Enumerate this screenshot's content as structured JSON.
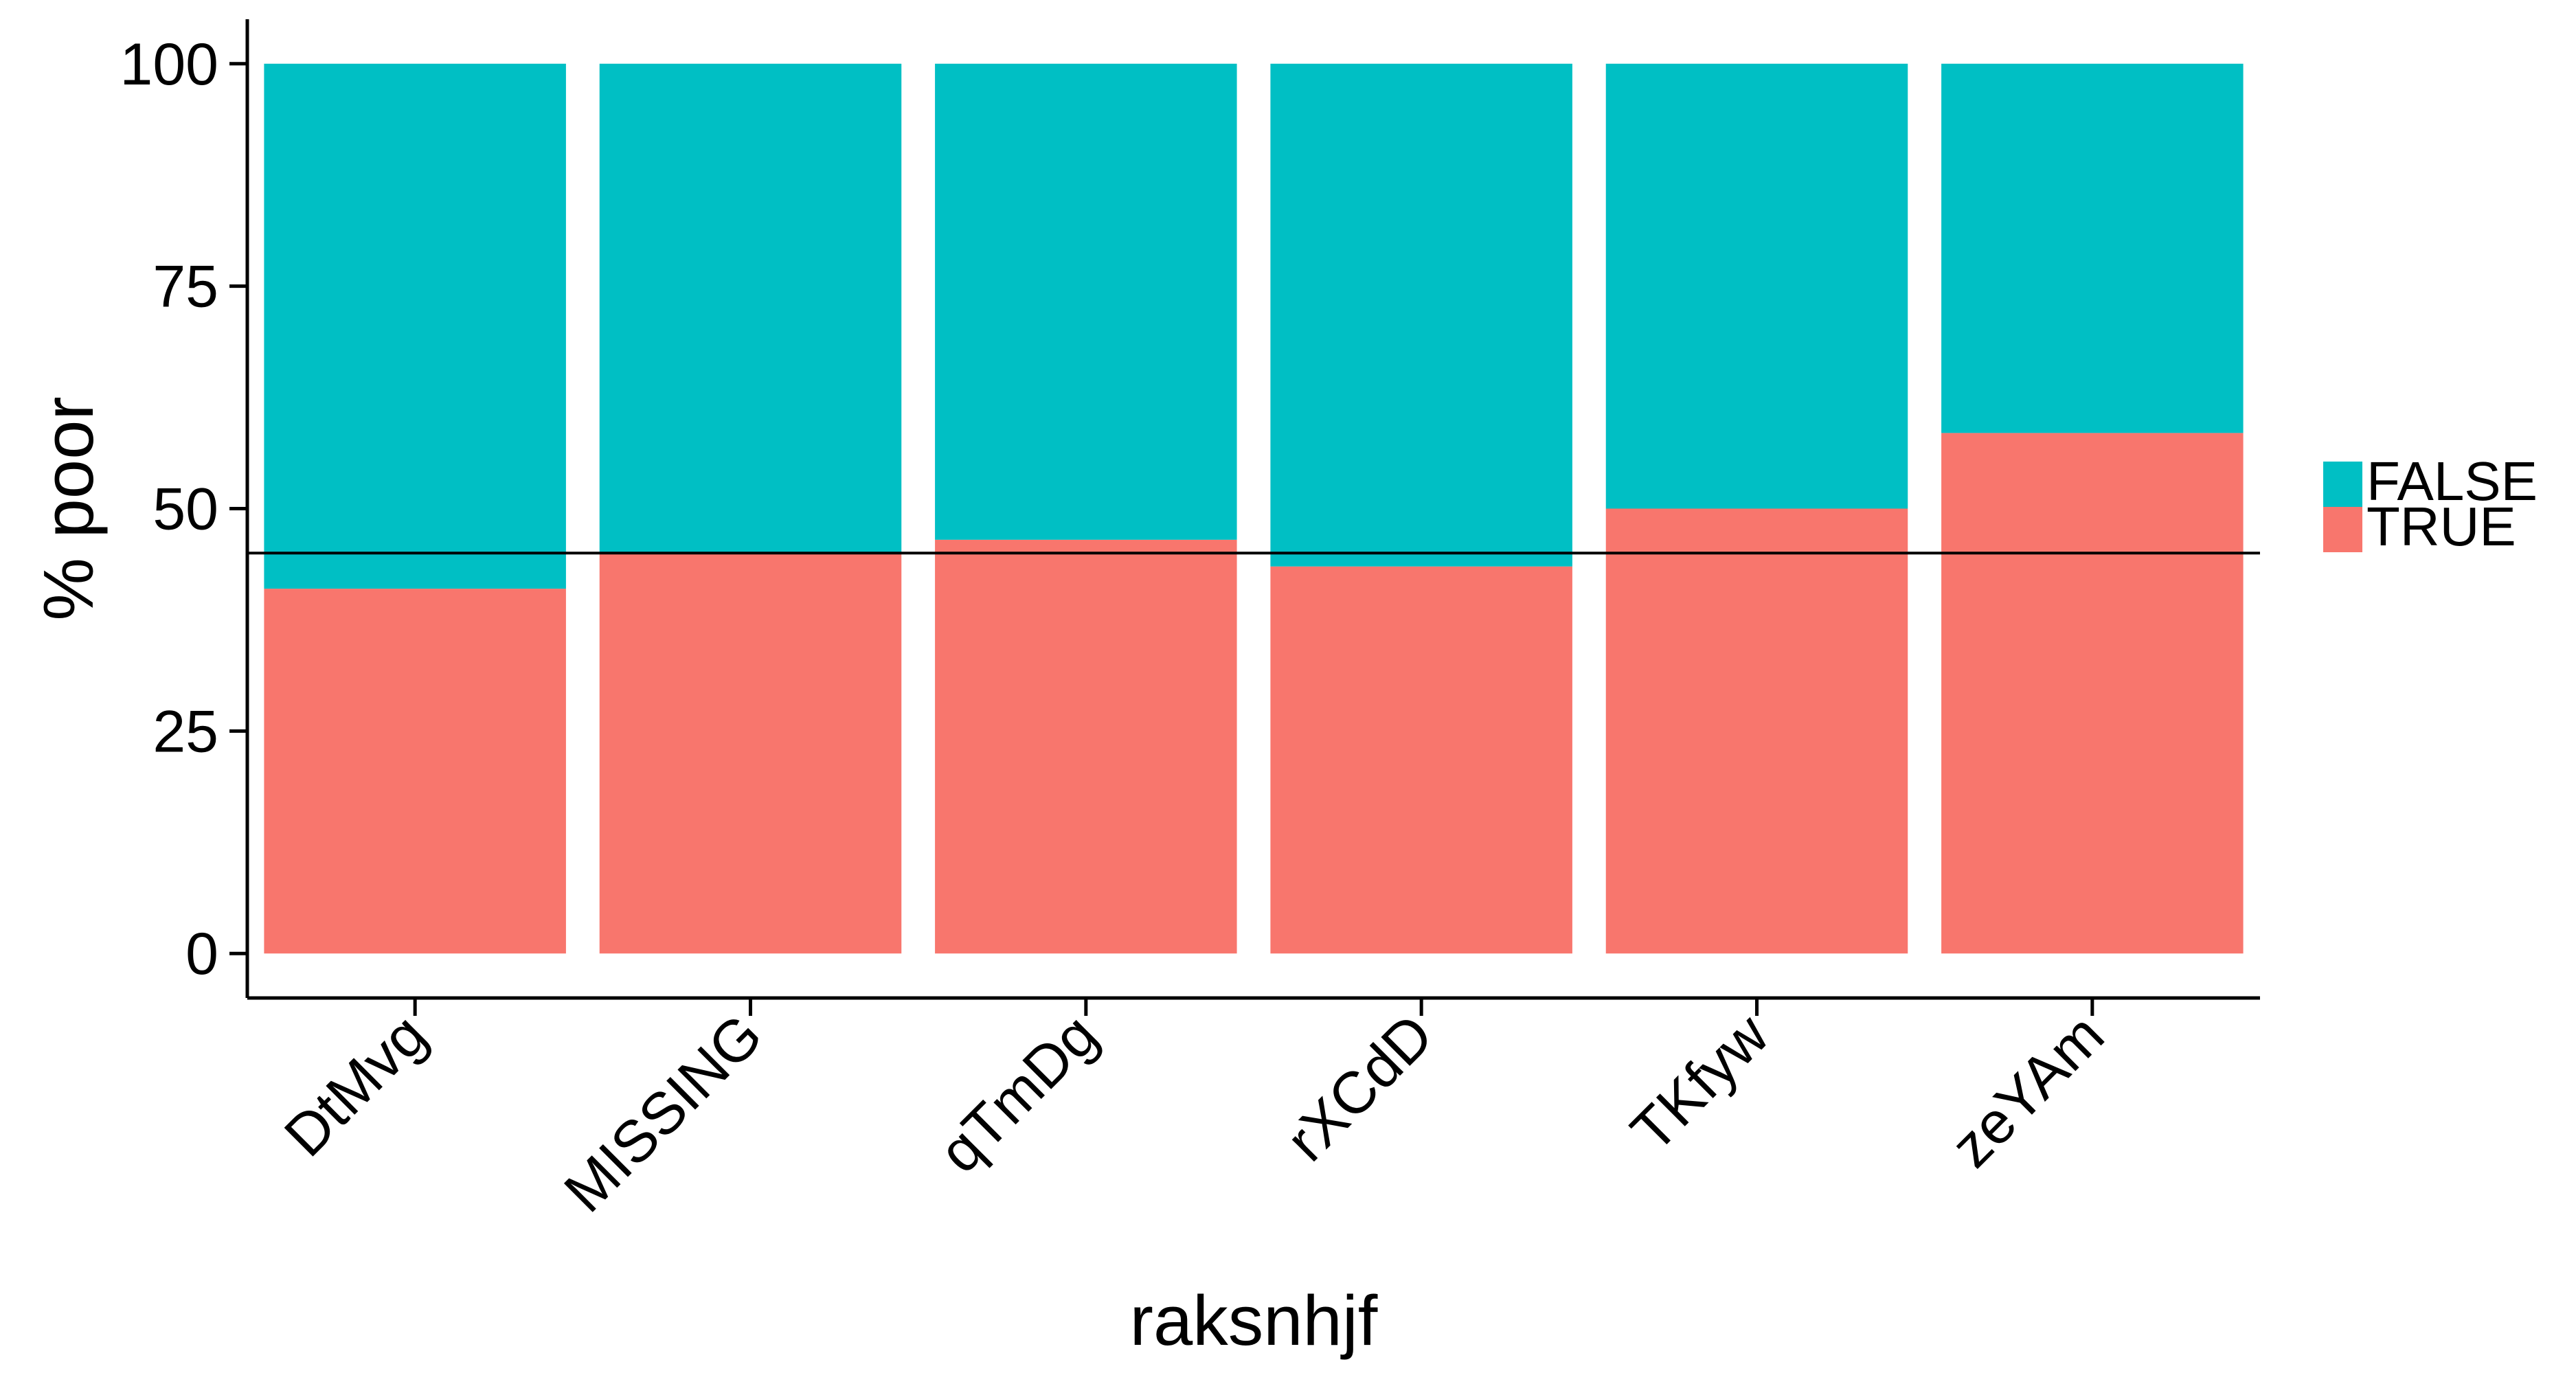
{
  "chart_data": {
    "type": "bar",
    "stacked": true,
    "categories": [
      "DtMvg",
      "MISSING",
      "qTmDg",
      "rXCdD",
      "TKfyw",
      "zeYAm"
    ],
    "series": [
      {
        "name": "TRUE",
        "color": "#F8766D",
        "values": [
          41,
          45,
          46.5,
          43.5,
          50,
          58.5
        ]
      },
      {
        "name": "FALSE",
        "color": "#00BFC4",
        "values": [
          59,
          55,
          53.5,
          56.5,
          50,
          41.5
        ]
      }
    ],
    "xlabel": "raksnhjf",
    "ylabel": "% poor",
    "ylim": [
      -5,
      105
    ],
    "yticks": [
      0,
      25,
      50,
      75,
      100
    ],
    "ytick_labels": [
      "0",
      "25",
      "50",
      "75",
      "100"
    ],
    "reference_line": {
      "y": 45,
      "color": "#000000"
    },
    "grid": false,
    "legend": {
      "position": "right",
      "entries": [
        {
          "label": "FALSE",
          "color": "#00BFC4"
        },
        {
          "label": "TRUE",
          "color": "#F8766D"
        }
      ]
    }
  }
}
